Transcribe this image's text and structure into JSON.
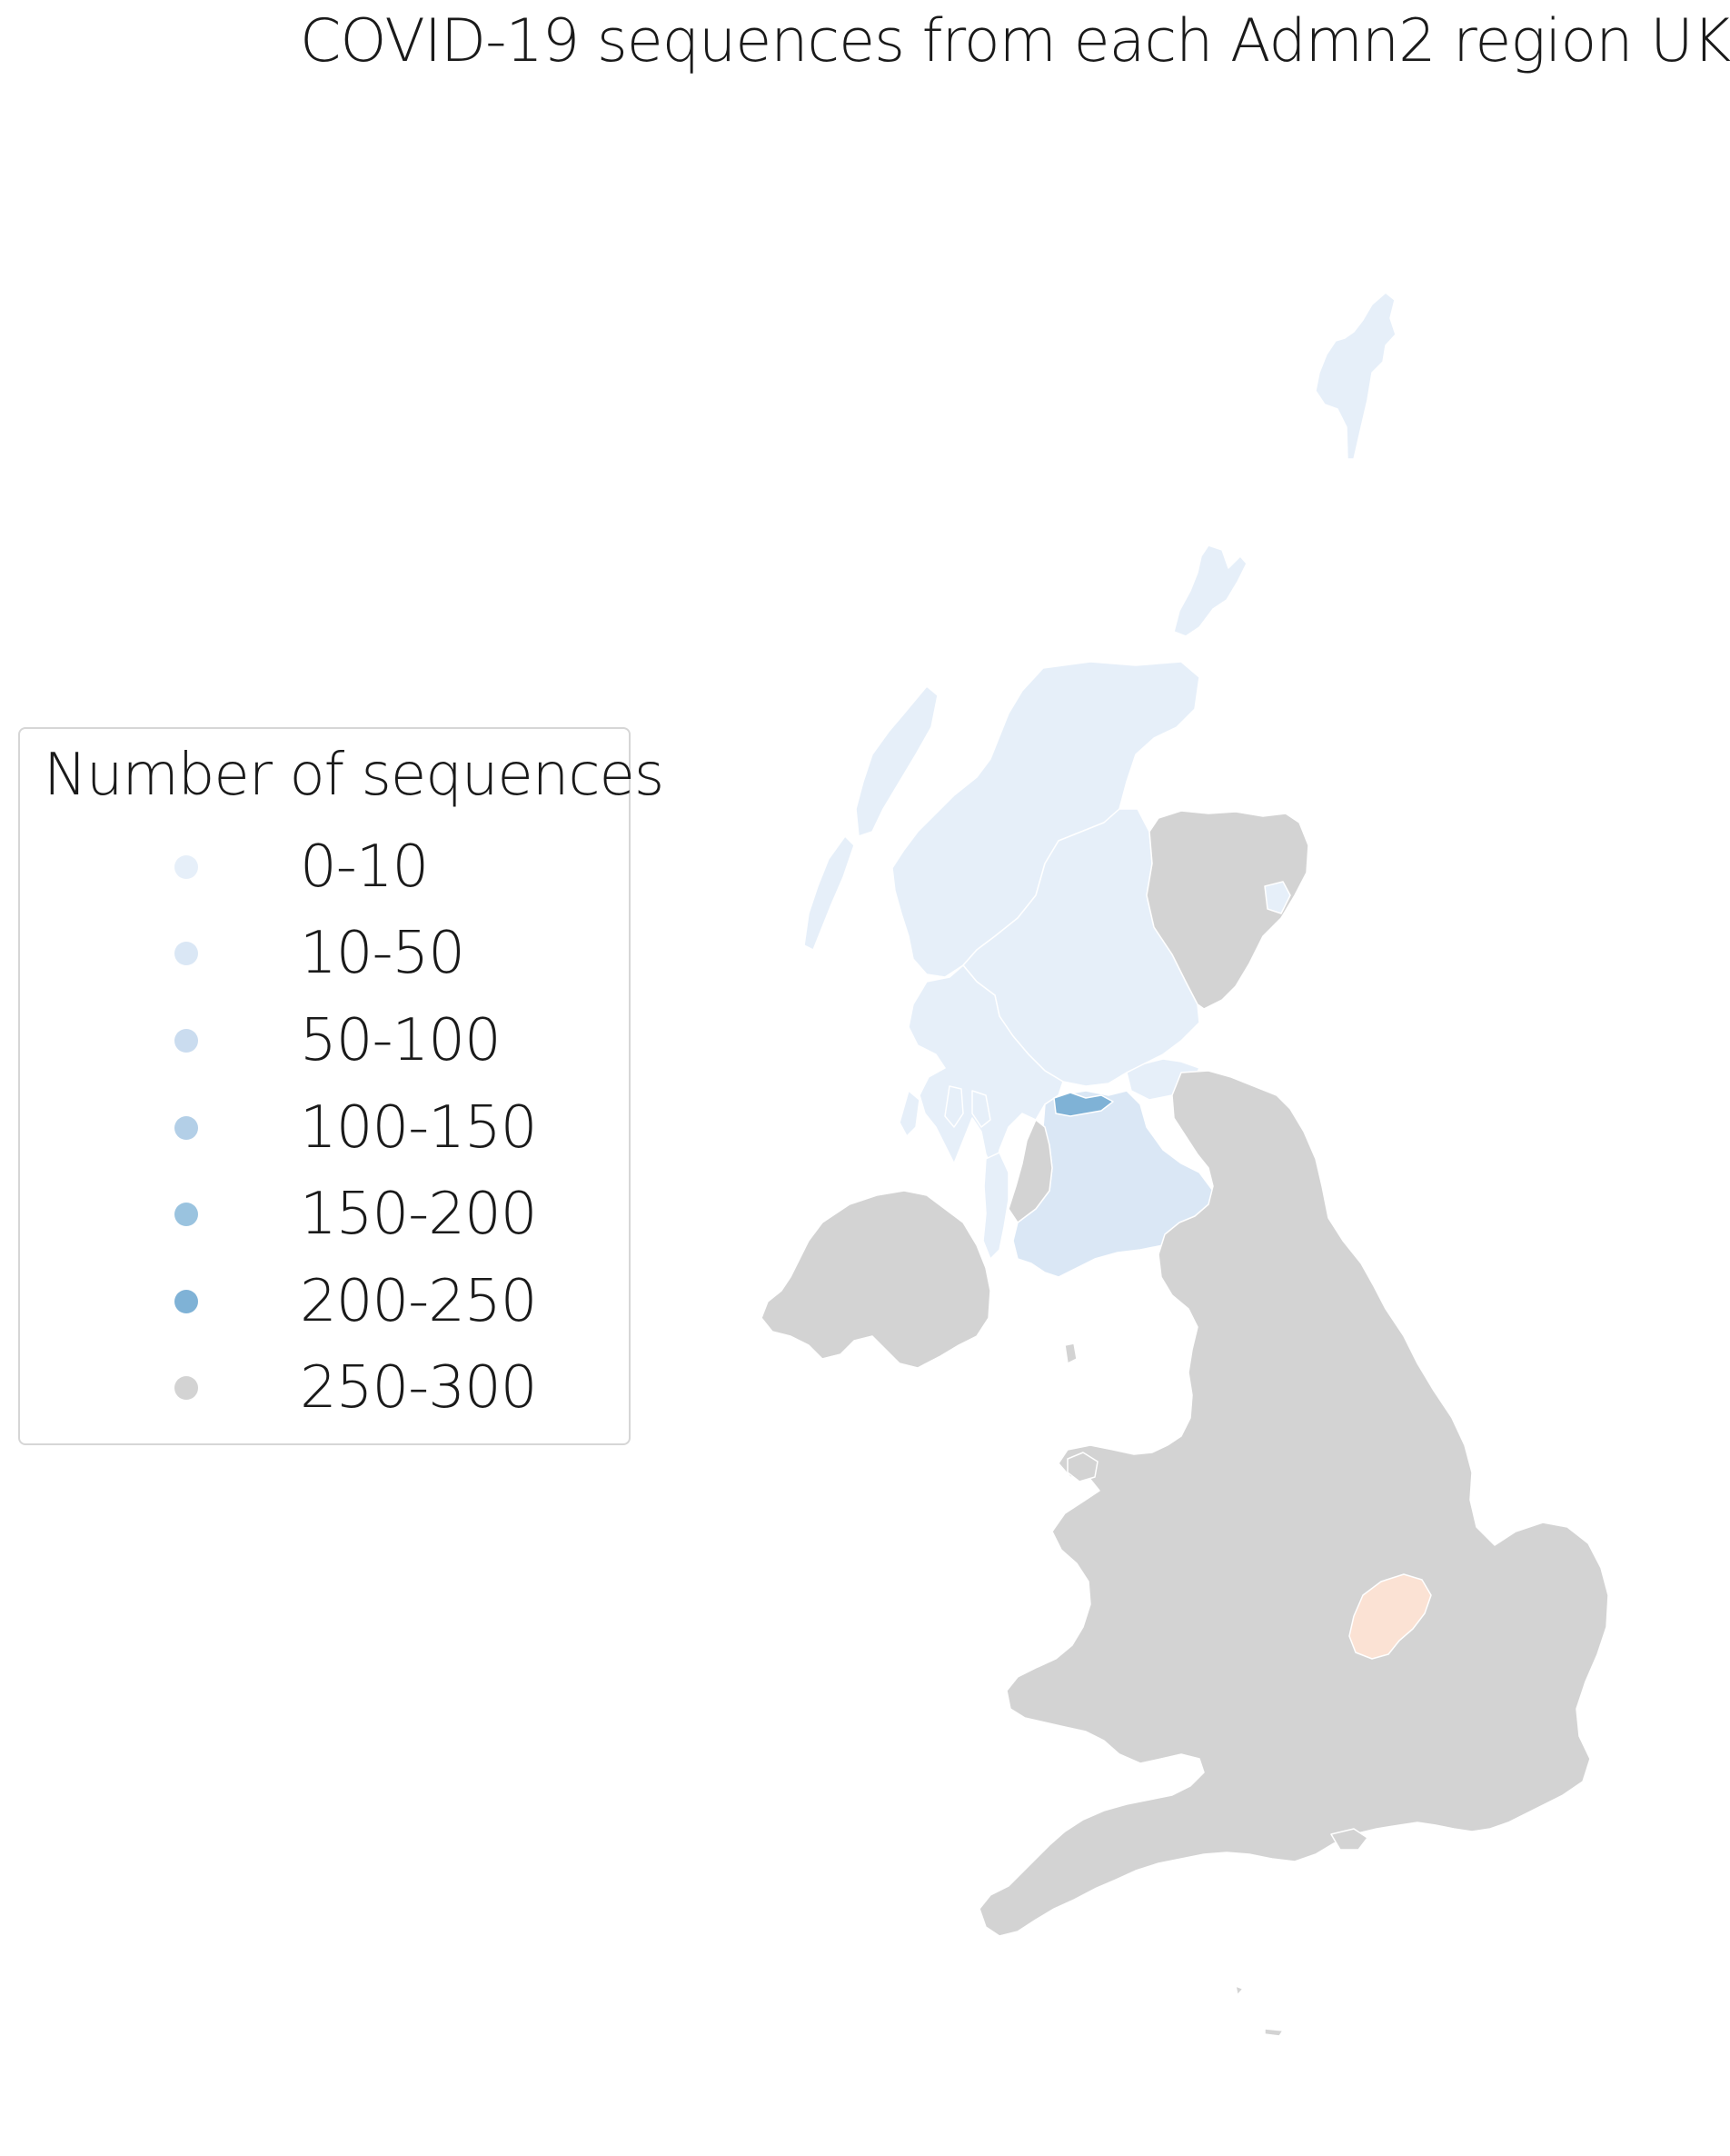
{
  "title": "COVID-19 sequences from each Admn2 region UK",
  "legend": {
    "title": "Number of sequences",
    "items": [
      {
        "label": "0-10",
        "color": "#e6eff9"
      },
      {
        "label": "10-50",
        "color": "#dae7f5"
      },
      {
        "label": "50-100",
        "color": "#cadcef"
      },
      {
        "label": "100-150",
        "color": "#b3cfe7"
      },
      {
        "label": "150-200",
        "color": "#9ac3df"
      },
      {
        "label": "200-250",
        "color": "#7fb2d6"
      },
      {
        "label": "250-300",
        "color": "#d3d3d3"
      }
    ]
  },
  "regions": [
    {
      "name": "Shetland",
      "bin": "0-10"
    },
    {
      "name": "Orkney",
      "bin": "0-10"
    },
    {
      "name": "Highland",
      "bin": "0-10"
    },
    {
      "name": "Western Isles",
      "bin": "0-10"
    },
    {
      "name": "Perth and Kinross",
      "bin": "0-10"
    },
    {
      "name": "Argyll and Bute",
      "bin": "0-10"
    },
    {
      "name": "Aberdeenshire",
      "bin": "250-300"
    },
    {
      "name": "Aberdeen City",
      "bin": "0-10"
    },
    {
      "name": "Lanarkshire",
      "bin": "10-50"
    },
    {
      "name": "Dumfries and Galloway",
      "bin": "10-50"
    },
    {
      "name": "Glasgow City",
      "bin": "200-250"
    },
    {
      "name": "Edinburgh",
      "bin": "0-10"
    },
    {
      "name": "Northern Ireland",
      "bin": "250-300"
    },
    {
      "name": "England",
      "bin": "250-300"
    },
    {
      "name": "Wales",
      "bin": "250-300"
    },
    {
      "name": "Northamptonshire",
      "bin": "other",
      "color": "#fbe2d4"
    }
  ]
}
